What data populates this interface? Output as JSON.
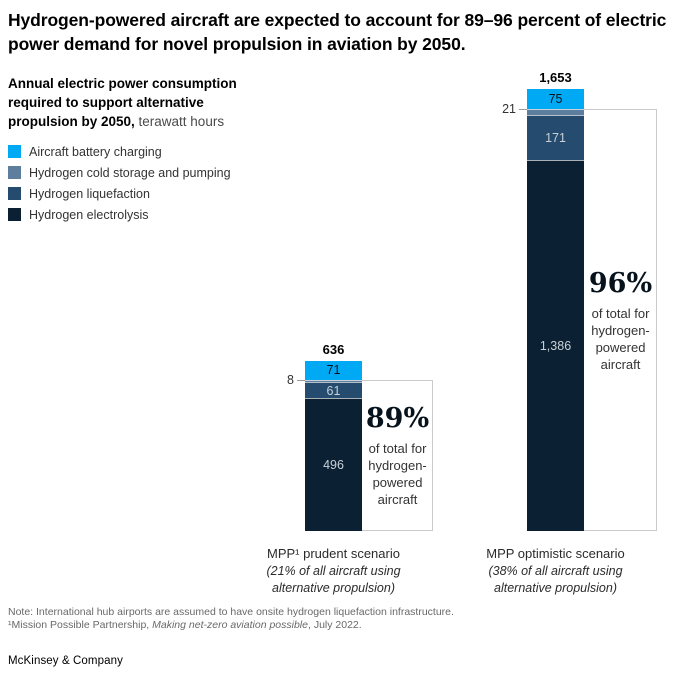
{
  "header": {
    "title": "Hydrogen-powered aircraft are expected to account for 89–96 percent of electric power demand for novel propulsion in aviation by 2050."
  },
  "subtitle": {
    "bold": "Annual electric power consumption required to support alternative propulsion by 2050,",
    "unit": " terawatt hours"
  },
  "chart_data": {
    "type": "bar",
    "stacked": true,
    "unit": "terawatt hours",
    "grid": false,
    "legend_position": "top-left",
    "categories": [
      "MPP¹ prudent scenario",
      "MPP optimistic scenario"
    ],
    "category_details": [
      "(21% of all aircraft using alternative propulsion)",
      "(38% of all aircraft using alternative propulsion)"
    ],
    "series": [
      {
        "name": "Aircraft battery charging",
        "color": "#00A9F4",
        "values": [
          71,
          75
        ]
      },
      {
        "name": "Hydrogen cold storage and pumping",
        "color": "#5E7E9E",
        "values": [
          8,
          21
        ]
      },
      {
        "name": "Hydrogen liquefaction",
        "color": "#254B6E",
        "values": [
          61,
          171
        ]
      },
      {
        "name": "Hydrogen electrolysis",
        "color": "#0B2033",
        "values": [
          496,
          1386
        ]
      }
    ],
    "totals": [
      "636",
      "1,653"
    ],
    "callouts": [
      {
        "pct": "89%",
        "caption": "of total for hydrogen-powered aircraft"
      },
      {
        "pct": "96%",
        "caption": "of total for hydrogen-powered aircraft"
      }
    ]
  },
  "footnotes": {
    "note": "Note: International hub airports are assumed to have onsite hydrogen liquefaction infrastructure.",
    "source_prefix": "¹Mission Possible Partnership, ",
    "source_italic": "Making net-zero aviation possible",
    "source_suffix": ", July 2022."
  },
  "brand": "McKinsey & Company"
}
